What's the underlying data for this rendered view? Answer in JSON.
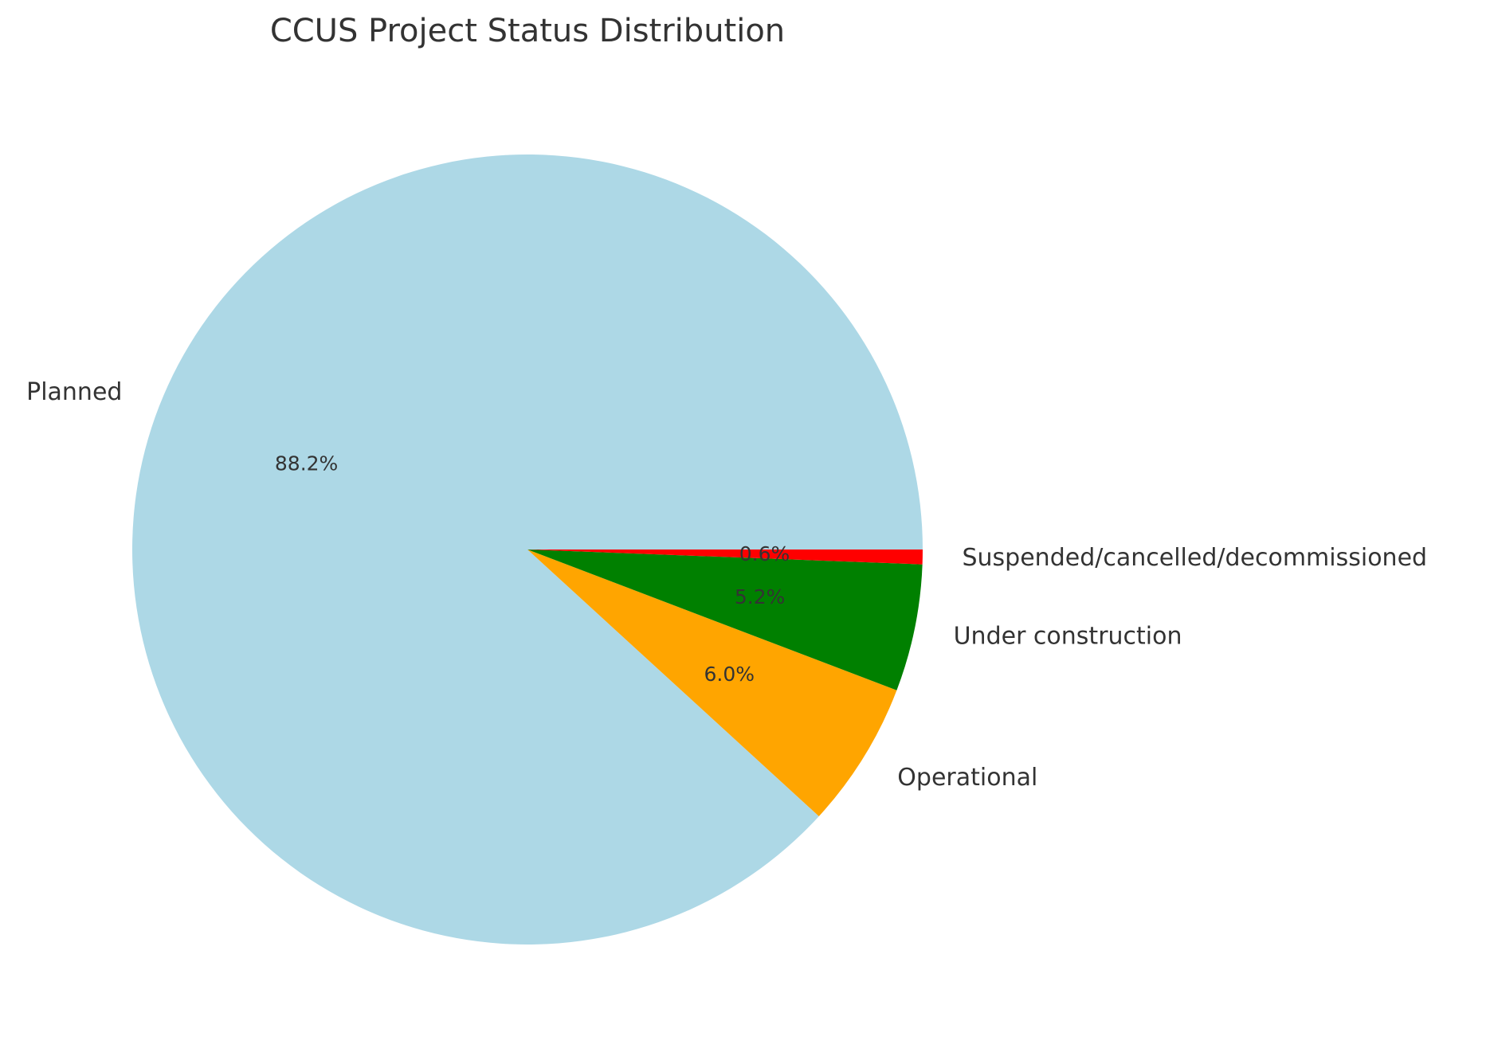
{
  "chart_data": {
    "type": "pie",
    "title": "CCUS Project Status Distribution",
    "slices": [
      {
        "label": "Planned",
        "value": 88.2,
        "pct_label": "88.2%",
        "color": "#add8e6"
      },
      {
        "label": "Operational",
        "value": 6.0,
        "pct_label": "6.0%",
        "color": "#ffa500"
      },
      {
        "label": "Under construction",
        "value": 5.2,
        "pct_label": "5.2%",
        "color": "#008000"
      },
      {
        "label": "Suspended/cancelled/decommissioned",
        "value": 0.6,
        "pct_label": "0.6%",
        "color": "#ff0000"
      }
    ],
    "start_angle_deg": 0,
    "direction": "counterclockwise",
    "legend": "none"
  }
}
